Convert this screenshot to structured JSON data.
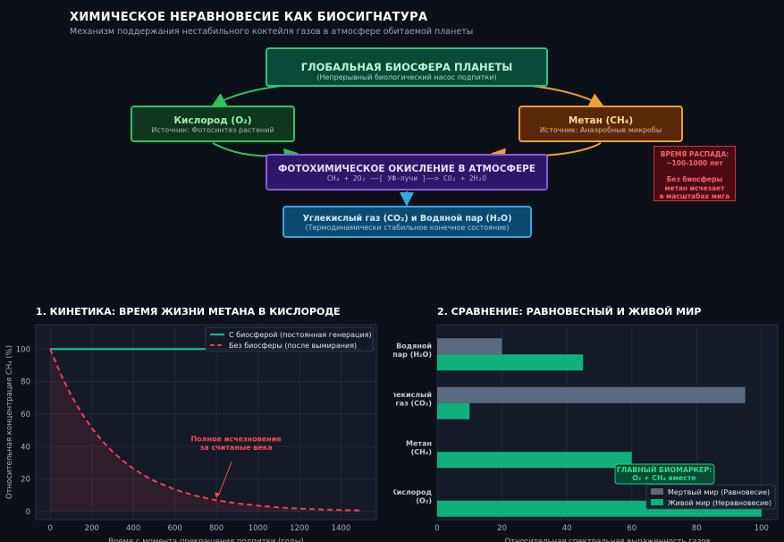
{
  "header": {
    "title": "ХИМИЧЕСКОЕ НЕРАВНОВЕСИЕ КАК БИОСИГНАТУРА",
    "subtitle": "Механизм поддержания нестабильного коктейля газов в атмосфере обитаемой планеты"
  },
  "diagram": {
    "biosphere": {
      "title": "ГЛОБАЛЬНАЯ БИОСФЕРА ПЛАНЕТЫ",
      "sub": "(Непрерывный биологический насос подпитки)"
    },
    "oxygen": {
      "title": "Кислород (O₂)",
      "sub": "Источник: Фотосинтез растений"
    },
    "methane": {
      "title": "Метан (CH₄)",
      "sub": "Источник: Анаэробные микробы"
    },
    "oxidation": {
      "title": "ФОТОХИМИЧЕСКОЕ ОКИСЛЕНИЕ В АТМОСФЕРЕ",
      "sub": "CH₄ + 2O₂ ——[ УФ-лучи ]——> CO₂ + 2H₂O"
    },
    "products": {
      "title": "Углекислый газ (CO₂) и Водяной пар (H₂O)",
      "sub": "(Термодинамически стабильное конечное состояние)"
    },
    "decay_box": {
      "line1": "ВРЕМЯ РАСПАДА:",
      "line2": "~100-1000 лет",
      "line3": "Без биосферы",
      "line4": "метан исчезает",
      "line5": "в масштабах мига"
    },
    "colors": {
      "oxygen": "#2fc45a",
      "methane": "#f0a030",
      "oxidation": "#8a5ae0",
      "products": "#3aa6e0"
    }
  },
  "sections": {
    "kinetics_title": "1. КИНЕТИКА: ВРЕМЯ ЖИЗНИ МЕТАНА В КИСЛОРОДЕ",
    "comparison_title": "2. СРАВНЕНИЕ: РАВНОВЕСНЫЙ И ЖИВОЙ МИР"
  },
  "chart_data": [
    {
      "type": "line",
      "xlabel": "Время с момента прекращения подпитки (годы)",
      "ylabel": "Относительная концентрация CH₄ (%)",
      "xlim": [
        -70,
        1570
      ],
      "ylim": [
        -5,
        115
      ],
      "xticks": [
        "0",
        "200",
        "400",
        "600",
        "800",
        "1000",
        "1200",
        "1400"
      ],
      "yticks": [
        "0",
        "20",
        "40",
        "60",
        "80",
        "100"
      ],
      "grid": true,
      "legend": "top-right",
      "series": [
        {
          "name": "С биосферой (постоянная генерация)",
          "color": "#10c08a",
          "style": "solid",
          "x": [
            0,
            1500
          ],
          "y": [
            100,
            100
          ]
        },
        {
          "name": "Без биосферы (после вымирания)",
          "color": "#f04050",
          "style": "dashed",
          "fill": true,
          "x": [
            0,
            50,
            100,
            150,
            200,
            250,
            300,
            350,
            400,
            450,
            500,
            600,
            700,
            800,
            900,
            1000,
            1100,
            1200,
            1300,
            1400,
            1500
          ],
          "y": [
            100,
            84.6,
            71.7,
            60.7,
            51.3,
            43.5,
            36.8,
            31.2,
            26.4,
            22.3,
            18.9,
            13.5,
            9.7,
            6.9,
            5.0,
            3.6,
            2.5,
            1.8,
            1.3,
            0.9,
            0.7
          ]
        }
      ],
      "annotations": [
        {
          "text_lines": [
            "Полное исчезновение",
            "за считаные века"
          ],
          "color": "#ff4a55",
          "point": [
            800,
            6.9
          ]
        }
      ]
    },
    {
      "type": "bar",
      "orientation": "horizontal",
      "xlabel": "Относительная спектральная выраженность газов",
      "xlim": [
        0,
        105
      ],
      "xticks": [
        "0",
        "20",
        "40",
        "60",
        "80",
        "100"
      ],
      "categories": [
        [
          "Водяной",
          "пар (H₂O)"
        ],
        [
          "Углекислый",
          "газ (CO₂)"
        ],
        [
          "Метан",
          "(CH₄)"
        ],
        [
          "Кислород",
          "(O₂)"
        ]
      ],
      "series": [
        {
          "name": "Мертвый мир (Равновесие)",
          "color": "#5a6a82",
          "values": [
            20,
            95,
            0,
            0
          ]
        },
        {
          "name": "Живой мир (Неравновесие)",
          "color": "#10b07a",
          "values": [
            45,
            10,
            60,
            100
          ]
        }
      ],
      "legend": "bottom-right",
      "grid": true,
      "annotation": {
        "line1": "ГЛАВНЫЙ БИОМАРКЕР:",
        "line2": "O₂ + CH₄ вместе",
        "color": "#2fe08a"
      }
    }
  ]
}
